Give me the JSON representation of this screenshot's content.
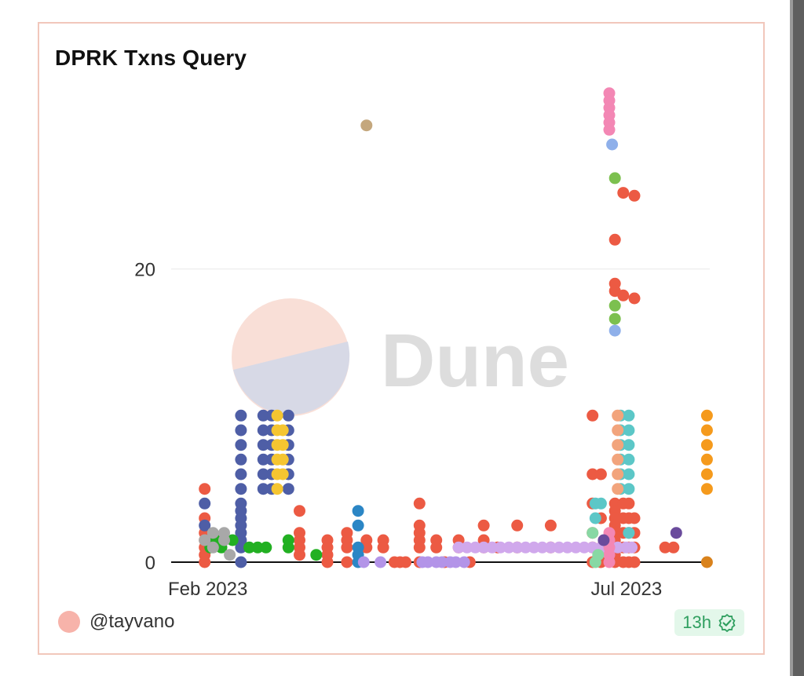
{
  "card": {
    "title": "DPRK Txns Query",
    "author": "@tayvano",
    "badge": "13h",
    "watermark": "Dune"
  },
  "chart_data": {
    "type": "scatter",
    "title": "DPRK Txns Query",
    "xlabel": "",
    "ylabel": "",
    "x_axis": {
      "type": "date",
      "ticks": [
        "Feb 2023",
        "Jul 2023"
      ],
      "range": [
        "2023-01-20",
        "2023-08-01"
      ]
    },
    "y_axis": {
      "ticks": [
        0,
        20
      ],
      "range": [
        0,
        33
      ]
    },
    "grid": "horizontal",
    "legend": "none",
    "series": [
      {
        "color": "#ec5a43",
        "points": [
          [
            "2023-02-01",
            5
          ],
          [
            "2023-02-01",
            3
          ],
          [
            "2023-02-01",
            2
          ],
          [
            "2023-02-01",
            1.5
          ],
          [
            "2023-02-01",
            1
          ],
          [
            "2023-02-01",
            0.5
          ],
          [
            "2023-02-01",
            0
          ],
          [
            "2023-03-07",
            3.5
          ],
          [
            "2023-03-07",
            2
          ],
          [
            "2023-03-07",
            1.5
          ],
          [
            "2023-03-07",
            1
          ],
          [
            "2023-03-07",
            0.5
          ],
          [
            "2023-03-17",
            1.5
          ],
          [
            "2023-03-17",
            1
          ],
          [
            "2023-03-17",
            0.5
          ],
          [
            "2023-03-17",
            0
          ],
          [
            "2023-03-24",
            2
          ],
          [
            "2023-03-24",
            1.5
          ],
          [
            "2023-03-24",
            1
          ],
          [
            "2023-03-24",
            0
          ],
          [
            "2023-03-31",
            1.5
          ],
          [
            "2023-03-31",
            1
          ],
          [
            "2023-04-06",
            1.5
          ],
          [
            "2023-04-06",
            1
          ],
          [
            "2023-04-10",
            0
          ],
          [
            "2023-04-12",
            0
          ],
          [
            "2023-04-14",
            0
          ],
          [
            "2023-04-19",
            4
          ],
          [
            "2023-04-19",
            2.5
          ],
          [
            "2023-04-19",
            2
          ],
          [
            "2023-04-19",
            1.5
          ],
          [
            "2023-04-19",
            1
          ],
          [
            "2023-04-19",
            0
          ],
          [
            "2023-04-25",
            1.5
          ],
          [
            "2023-04-25",
            1
          ],
          [
            "2023-04-28",
            0
          ],
          [
            "2023-05-03",
            1.5
          ],
          [
            "2023-05-03",
            1
          ],
          [
            "2023-05-07",
            0
          ],
          [
            "2023-05-12",
            2.5
          ],
          [
            "2023-05-12",
            1.5
          ],
          [
            "2023-05-12",
            1
          ],
          [
            "2023-05-17",
            1
          ],
          [
            "2023-05-24",
            2.5
          ],
          [
            "2023-05-24",
            1
          ],
          [
            "2023-06-05",
            2.5
          ],
          [
            "2023-06-05",
            1
          ],
          [
            "2023-06-20",
            10
          ],
          [
            "2023-06-20",
            6
          ],
          [
            "2023-06-20",
            4
          ],
          [
            "2023-06-20",
            2
          ],
          [
            "2023-06-20",
            1
          ],
          [
            "2023-06-20",
            0
          ],
          [
            "2023-06-23",
            6
          ],
          [
            "2023-06-23",
            3
          ],
          [
            "2023-06-23",
            1
          ],
          [
            "2023-06-23",
            0
          ],
          [
            "2023-06-28",
            19
          ],
          [
            "2023-06-28",
            18.5
          ],
          [
            "2023-06-28",
            22
          ],
          [
            "2023-06-28",
            4
          ],
          [
            "2023-06-28",
            3.5
          ],
          [
            "2023-06-28",
            3
          ],
          [
            "2023-06-28",
            2.5
          ],
          [
            "2023-06-28",
            2
          ],
          [
            "2023-06-28",
            1.5
          ],
          [
            "2023-06-28",
            1
          ],
          [
            "2023-06-28",
            0.5
          ],
          [
            "2023-06-28",
            0
          ],
          [
            "2023-07-01",
            25.2
          ],
          [
            "2023-07-01",
            18.2
          ],
          [
            "2023-07-01",
            4
          ],
          [
            "2023-07-01",
            3
          ],
          [
            "2023-07-01",
            2
          ],
          [
            "2023-07-01",
            1
          ],
          [
            "2023-07-01",
            0
          ],
          [
            "2023-07-03",
            4
          ],
          [
            "2023-07-03",
            3
          ],
          [
            "2023-07-03",
            2
          ],
          [
            "2023-07-03",
            1
          ],
          [
            "2023-07-03",
            0
          ],
          [
            "2023-07-05",
            25
          ],
          [
            "2023-07-05",
            18
          ],
          [
            "2023-07-05",
            3
          ],
          [
            "2023-07-05",
            2
          ],
          [
            "2023-07-05",
            1
          ],
          [
            "2023-07-05",
            0
          ],
          [
            "2023-07-16",
            1
          ],
          [
            "2023-07-19",
            1
          ]
        ]
      },
      {
        "color": "#4e5ea6",
        "points": [
          [
            "2023-02-01",
            4
          ],
          [
            "2023-02-01",
            2.5
          ],
          [
            "2023-02-14",
            10
          ],
          [
            "2023-02-14",
            9
          ],
          [
            "2023-02-14",
            8
          ],
          [
            "2023-02-14",
            7
          ],
          [
            "2023-02-14",
            6
          ],
          [
            "2023-02-14",
            5
          ],
          [
            "2023-02-14",
            4
          ],
          [
            "2023-02-14",
            3.5
          ],
          [
            "2023-02-14",
            3
          ],
          [
            "2023-02-14",
            2.5
          ],
          [
            "2023-02-14",
            2
          ],
          [
            "2023-02-14",
            1.5
          ],
          [
            "2023-02-14",
            1
          ],
          [
            "2023-02-14",
            0
          ],
          [
            "2023-02-22",
            10
          ],
          [
            "2023-02-22",
            9
          ],
          [
            "2023-02-22",
            8
          ],
          [
            "2023-02-22",
            7
          ],
          [
            "2023-02-22",
            6
          ],
          [
            "2023-02-22",
            5
          ],
          [
            "2023-02-25",
            10
          ],
          [
            "2023-02-25",
            9
          ],
          [
            "2023-02-25",
            8
          ],
          [
            "2023-02-25",
            7
          ],
          [
            "2023-02-25",
            6
          ],
          [
            "2023-02-25",
            5
          ],
          [
            "2023-03-03",
            10
          ],
          [
            "2023-03-03",
            9
          ],
          [
            "2023-03-03",
            8
          ],
          [
            "2023-03-03",
            7
          ],
          [
            "2023-03-03",
            6
          ],
          [
            "2023-03-03",
            5
          ]
        ]
      },
      {
        "color": "#f5c531",
        "points": [
          [
            "2023-02-27",
            10
          ],
          [
            "2023-02-27",
            9
          ],
          [
            "2023-02-27",
            8
          ],
          [
            "2023-02-27",
            7
          ],
          [
            "2023-02-27",
            6
          ],
          [
            "2023-02-27",
            5
          ],
          [
            "2023-03-01",
            9
          ],
          [
            "2023-03-01",
            8
          ],
          [
            "2023-03-01",
            7
          ],
          [
            "2023-03-01",
            6
          ]
        ]
      },
      {
        "color": "#22b022",
        "points": [
          [
            "2023-02-03",
            1
          ],
          [
            "2023-02-05",
            1.5
          ],
          [
            "2023-02-07",
            1
          ],
          [
            "2023-02-11",
            1.5
          ],
          [
            "2023-02-17",
            1
          ],
          [
            "2023-02-20",
            1
          ],
          [
            "2023-02-23",
            1
          ],
          [
            "2023-03-03",
            1.5
          ],
          [
            "2023-03-03",
            1
          ],
          [
            "2023-03-13",
            0.5
          ]
        ]
      },
      {
        "color": "#a8a8a8",
        "points": [
          [
            "2023-02-01",
            1.5
          ],
          [
            "2023-02-04",
            2
          ],
          [
            "2023-02-04",
            1
          ],
          [
            "2023-02-08",
            2
          ],
          [
            "2023-02-08",
            1.5
          ],
          [
            "2023-02-10",
            0.5
          ]
        ]
      },
      {
        "color": "#2b86c5",
        "points": [
          [
            "2023-03-28",
            3.5
          ],
          [
            "2023-03-28",
            2.5
          ],
          [
            "2023-03-28",
            1
          ],
          [
            "2023-03-28",
            0.5
          ],
          [
            "2023-03-28",
            0
          ]
        ]
      },
      {
        "color": "#b394e8",
        "points": [
          [
            "2023-03-30",
            0
          ],
          [
            "2023-04-05",
            0
          ],
          [
            "2023-04-20",
            0
          ],
          [
            "2023-04-22",
            0
          ],
          [
            "2023-04-25",
            0
          ],
          [
            "2023-04-27",
            0
          ],
          [
            "2023-04-30",
            0
          ],
          [
            "2023-05-02",
            0
          ],
          [
            "2023-05-05",
            0
          ]
        ]
      },
      {
        "color": "#d0a8ec",
        "points": [
          [
            "2023-05-03",
            1
          ],
          [
            "2023-05-06",
            1
          ],
          [
            "2023-05-09",
            1
          ],
          [
            "2023-05-12",
            1
          ],
          [
            "2023-05-15",
            1
          ],
          [
            "2023-05-18",
            1
          ],
          [
            "2023-05-21",
            1
          ],
          [
            "2023-05-24",
            1
          ],
          [
            "2023-05-27",
            1
          ],
          [
            "2023-05-30",
            1
          ],
          [
            "2023-06-02",
            1
          ],
          [
            "2023-06-05",
            1
          ],
          [
            "2023-06-08",
            1
          ],
          [
            "2023-06-11",
            1
          ],
          [
            "2023-06-14",
            1
          ],
          [
            "2023-06-17",
            1
          ],
          [
            "2023-06-20",
            1
          ],
          [
            "2023-06-23",
            1
          ],
          [
            "2023-06-26",
            1
          ],
          [
            "2023-06-29",
            1
          ],
          [
            "2023-07-02",
            1
          ],
          [
            "2023-07-04",
            1
          ]
        ]
      },
      {
        "color": "#f387b4",
        "points": [
          [
            "2023-06-26",
            32
          ],
          [
            "2023-06-26",
            31.5
          ],
          [
            "2023-06-26",
            31
          ],
          [
            "2023-06-26",
            30.5
          ],
          [
            "2023-06-26",
            30
          ],
          [
            "2023-06-26",
            29.5
          ],
          [
            "2023-06-26",
            2
          ],
          [
            "2023-06-26",
            1.5
          ],
          [
            "2023-06-26",
            1
          ],
          [
            "2023-06-26",
            0.5
          ],
          [
            "2023-06-26",
            0
          ]
        ]
      },
      {
        "color": "#8fb0ea",
        "points": [
          [
            "2023-06-27",
            28.5
          ],
          [
            "2023-06-28",
            15.8
          ]
        ]
      },
      {
        "color": "#7cc04f",
        "points": [
          [
            "2023-06-28",
            26.2
          ],
          [
            "2023-06-28",
            17.5
          ],
          [
            "2023-06-28",
            16.6
          ]
        ]
      },
      {
        "color": "#5cc7c7",
        "points": [
          [
            "2023-06-21",
            4
          ],
          [
            "2023-06-21",
            3
          ],
          [
            "2023-06-23",
            4
          ],
          [
            "2023-06-30",
            10
          ],
          [
            "2023-06-30",
            9
          ],
          [
            "2023-06-30",
            8
          ],
          [
            "2023-06-30",
            7
          ],
          [
            "2023-06-30",
            6
          ],
          [
            "2023-06-30",
            5
          ],
          [
            "2023-07-03",
            10
          ],
          [
            "2023-07-03",
            9
          ],
          [
            "2023-07-03",
            8
          ],
          [
            "2023-07-03",
            7
          ],
          [
            "2023-07-03",
            6
          ],
          [
            "2023-07-03",
            5
          ],
          [
            "2023-07-03",
            2
          ]
        ]
      },
      {
        "color": "#f2a47c",
        "points": [
          [
            "2023-06-29",
            10
          ],
          [
            "2023-06-29",
            9
          ],
          [
            "2023-06-29",
            8
          ],
          [
            "2023-06-29",
            7
          ],
          [
            "2023-06-29",
            6
          ],
          [
            "2023-06-29",
            5
          ]
        ]
      },
      {
        "color": "#88d8a4",
        "points": [
          [
            "2023-06-20",
            2
          ],
          [
            "2023-06-21",
            0
          ],
          [
            "2023-06-22",
            0.5
          ]
        ]
      },
      {
        "color": "#6a4b9c",
        "points": [
          [
            "2023-06-24",
            1.5
          ],
          [
            "2023-07-20",
            2
          ]
        ]
      },
      {
        "color": "#c4a77d",
        "points": [
          [
            "2023-03-31",
            29.8
          ]
        ]
      },
      {
        "color": "#f59a1c",
        "points": [
          [
            "2023-07-31",
            10
          ],
          [
            "2023-07-31",
            9
          ],
          [
            "2023-07-31",
            8
          ],
          [
            "2023-07-31",
            7
          ],
          [
            "2023-07-31",
            6
          ],
          [
            "2023-07-31",
            5
          ]
        ]
      },
      {
        "color": "#d9821c",
        "points": [
          [
            "2023-07-31",
            0
          ]
        ]
      }
    ]
  }
}
